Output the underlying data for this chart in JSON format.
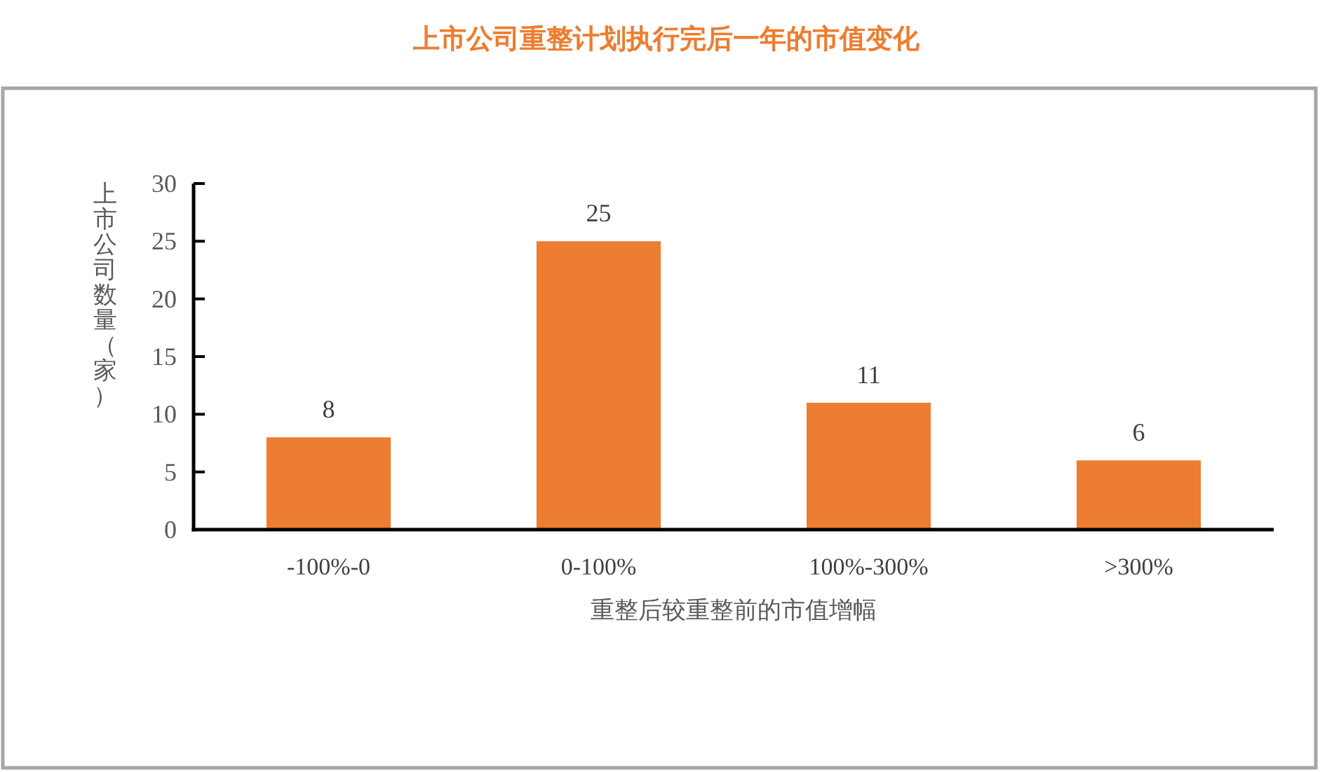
{
  "chart_data": {
    "type": "bar",
    "title": "上市公司重整计划执行完后一年的市值变化",
    "xlabel": "重整后较重整前的市值增幅",
    "ylabel": "上市公司数量（家）",
    "categories": [
      "-100%-0",
      "0-100%",
      "100%-300%",
      ">300%"
    ],
    "values": [
      8,
      25,
      11,
      6
    ],
    "color": "#ed7d31",
    "ylim": [
      0,
      30
    ],
    "yticks": [
      0,
      5,
      10,
      15,
      20,
      25,
      30
    ],
    "data_labels": true
  }
}
